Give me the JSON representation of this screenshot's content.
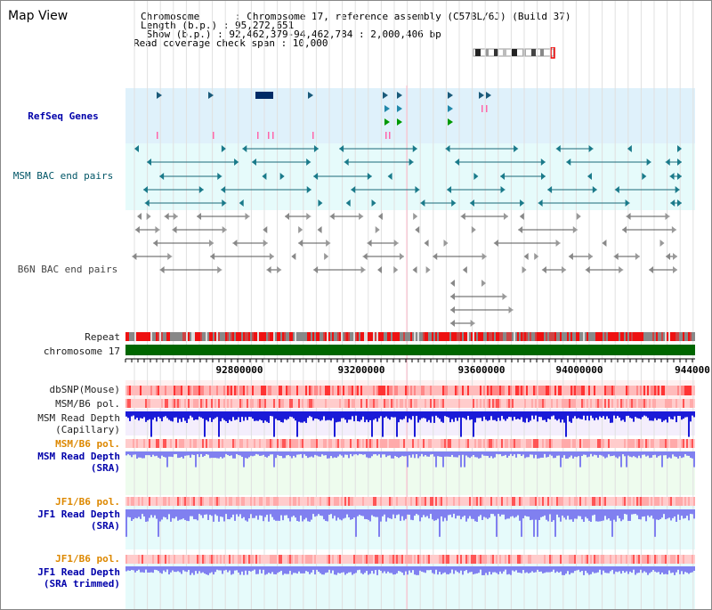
{
  "view_title": "Map View",
  "info": {
    "chromosome": "Chromosome      : Chromosome 17, reference assembly (C57BL/6J) (Build 37)",
    "length": "Length (b.p.) : 95,272,651",
    "show": " Show (b.p.) : 92,462,379-94,462,784 : 2,000,406 bp",
    "coverage": "Read coverage check span : 10,000"
  },
  "tracks": {
    "refseq": "RefSeq Genes",
    "msm_bac": "MSM BAC end pairs",
    "b6n_bac": "B6N BAC end pairs",
    "repeat": "Repeat",
    "chromosome": "chromosome 17",
    "dbsnp": "dbSNP(Mouse)",
    "msm_b6_pol": "MSM/B6 pol.",
    "msm_depth_cap_1": "MSM Read Depth",
    "msm_depth_cap_2": "(Capillary)",
    "msm_b6_pol_2": "MSM/B6 pol.",
    "msm_depth_sra_1": "MSM Read Depth",
    "msm_depth_sra_2": "(SRA)",
    "jf1_b6_pol": "JF1/B6 pol.",
    "jf1_depth_sra_1": "JF1 Read Depth",
    "jf1_depth_sra_2": "(SRA)",
    "jf1_b6_pol_2": "JF1/B6 pol.",
    "jf1_depth_trim_1": "JF1 Read Depth",
    "jf1_depth_trim_2": "(SRA trimmed)"
  },
  "axis_ticks": [
    "92800000",
    "93200000",
    "93600000",
    "94000000",
    "944000"
  ],
  "colors": {
    "refseq_bg": "#dff1fb",
    "msm_bac_bg": "#e6fbfb",
    "depth_bar": "#1b1bd8",
    "depth_light": "#8080f0",
    "chrom_green": "#006600",
    "repeat_red": "#ee1111"
  }
}
